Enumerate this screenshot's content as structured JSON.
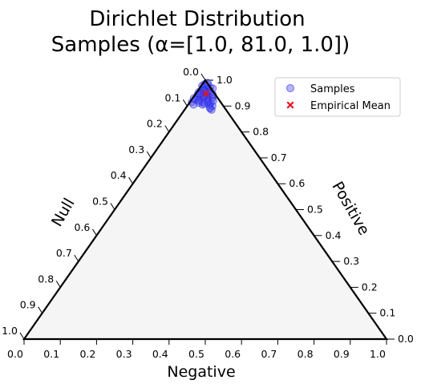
{
  "chart_data": {
    "type": "scatter",
    "projection": "ternary",
    "title_line1": "Dirichlet Distribution",
    "title_line2": "Samples (α=[1.0, 81.0, 1.0])",
    "alpha": [
      1.0,
      81.0,
      1.0
    ],
    "axes": {
      "bottom": {
        "label": "Negative",
        "ticks": [
          "0.0",
          "0.1",
          "0.2",
          "0.3",
          "0.4",
          "0.5",
          "0.6",
          "0.7",
          "0.8",
          "0.9",
          "1.0"
        ]
      },
      "left": {
        "label": "Null",
        "ticks": [
          "0.0",
          "0.1",
          "0.2",
          "0.3",
          "0.4",
          "0.5",
          "0.6",
          "0.7",
          "0.8",
          "0.9",
          "1.0"
        ]
      },
      "right": {
        "label": "Positive",
        "ticks": [
          "0.0",
          "0.1",
          "0.2",
          "0.3",
          "0.4",
          "0.5",
          "0.6",
          "0.7",
          "0.8",
          "0.9",
          "1.0"
        ]
      }
    },
    "series": [
      {
        "name": "Samples",
        "marker": "circle",
        "color": "#4a4af0",
        "columns": [
          "negative",
          "positive",
          "null"
        ],
        "points": [
          [
            0.012,
            0.975,
            0.013
          ],
          [
            0.005,
            0.985,
            0.01
          ],
          [
            0.02,
            0.965,
            0.015
          ],
          [
            0.01,
            0.96,
            0.03
          ],
          [
            0.03,
            0.955,
            0.015
          ],
          [
            0.008,
            0.97,
            0.022
          ],
          [
            0.025,
            0.945,
            0.03
          ],
          [
            0.015,
            0.95,
            0.035
          ],
          [
            0.035,
            0.94,
            0.025
          ],
          [
            0.005,
            0.955,
            0.04
          ],
          [
            0.04,
            0.935,
            0.025
          ],
          [
            0.018,
            0.94,
            0.042
          ],
          [
            0.045,
            0.925,
            0.03
          ],
          [
            0.01,
            0.935,
            0.055
          ],
          [
            0.03,
            0.93,
            0.04
          ],
          [
            0.05,
            0.915,
            0.035
          ],
          [
            0.022,
            0.92,
            0.058
          ],
          [
            0.06,
            0.91,
            0.03
          ],
          [
            0.005,
            0.915,
            0.08
          ],
          [
            0.04,
            0.905,
            0.055
          ],
          [
            0.065,
            0.895,
            0.04
          ],
          [
            0.012,
            0.99,
            0.0
          ],
          [
            0.028,
            0.972,
            0.0
          ],
          [
            0.002,
            0.978,
            0.02
          ],
          [
            0.055,
            0.93,
            0.015
          ],
          [
            0.015,
            0.905,
            0.08
          ],
          [
            0.032,
            0.96,
            0.008
          ],
          [
            0.006,
            0.945,
            0.049
          ],
          [
            0.048,
            0.945,
            0.007
          ],
          [
            0.02,
            0.925,
            0.055
          ],
          [
            0.07,
            0.9,
            0.03
          ],
          [
            0.012,
            0.962,
            0.026
          ],
          [
            0.038,
            0.95,
            0.012
          ],
          [
            0.024,
            0.952,
            0.024
          ],
          [
            0.044,
            0.92,
            0.036
          ],
          [
            0.003,
            0.93,
            0.067
          ],
          [
            0.058,
            0.905,
            0.037
          ],
          [
            0.016,
            0.982,
            0.002
          ],
          [
            0.034,
            0.915,
            0.051
          ],
          [
            0.075,
            0.885,
            0.04
          ],
          [
            0.009,
            0.925,
            0.066
          ],
          [
            0.028,
            0.938,
            0.034
          ],
          [
            0.052,
            0.938,
            0.01
          ],
          [
            0.062,
            0.92,
            0.018
          ],
          [
            0.018,
            0.958,
            0.024
          ],
          [
            0.037,
            0.968,
            -0.005
          ],
          [
            0.042,
            0.91,
            0.048
          ],
          [
            0.068,
            0.89,
            0.042
          ],
          [
            0.011,
            0.948,
            0.041
          ],
          [
            0.026,
            0.912,
            0.062
          ]
        ]
      },
      {
        "name": "Empirical Mean",
        "marker": "x",
        "color": "#e4121b",
        "columns": [
          "negative",
          "positive",
          "null"
        ],
        "points": [
          [
            0.028,
            0.948,
            0.024
          ]
        ]
      }
    ],
    "legend": {
      "position": "top-right",
      "entries": [
        "Samples",
        "Empirical Mean"
      ]
    }
  }
}
